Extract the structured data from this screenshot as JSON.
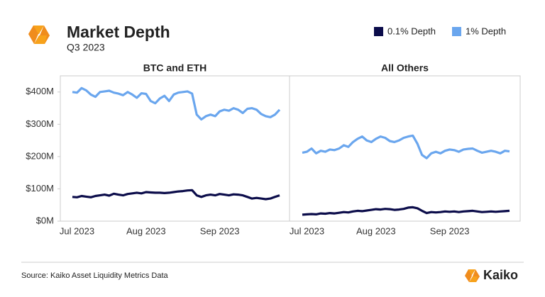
{
  "title": "Market Depth",
  "subtitle": "Q3 2023",
  "source": "Source: Kaiko Asset Liquidity Metrics Data",
  "brand": "Kaiko",
  "chart_data": [
    {
      "type": "line",
      "title": "BTC and ETH",
      "categories": [
        null,
        "Jul 2023",
        null,
        null,
        null,
        null,
        null,
        null,
        null,
        null,
        null,
        null,
        null,
        null,
        null,
        null,
        "Aug 2023",
        null,
        null,
        null,
        null,
        null,
        null,
        null,
        null,
        null,
        null,
        null,
        null,
        null,
        null,
        null,
        "Sep 2023",
        null,
        null,
        null,
        null,
        null,
        null,
        null,
        null,
        null,
        null,
        null,
        null,
        null
      ],
      "series": [
        {
          "name": "0.1% Depth",
          "color": "#0b0c4a",
          "values": [
            75,
            74,
            78,
            76,
            74,
            78,
            80,
            82,
            79,
            85,
            82,
            80,
            84,
            86,
            88,
            86,
            90,
            89,
            88,
            88,
            87,
            88,
            90,
            92,
            93,
            95,
            96,
            80,
            75,
            80,
            82,
            80,
            84,
            82,
            80,
            83,
            82,
            80,
            75,
            70,
            72,
            70,
            68,
            70,
            75,
            80
          ]
        },
        {
          "name": "1% Depth",
          "color": "#6aa6ee",
          "values": [
            400,
            398,
            412,
            405,
            392,
            385,
            400,
            402,
            404,
            398,
            395,
            390,
            400,
            392,
            382,
            396,
            394,
            372,
            365,
            380,
            388,
            372,
            392,
            398,
            400,
            402,
            395,
            330,
            315,
            325,
            330,
            325,
            340,
            345,
            342,
            350,
            345,
            335,
            348,
            350,
            345,
            332,
            325,
            322,
            330,
            345
          ]
        }
      ],
      "ylim": [
        0,
        450
      ],
      "yticks": [
        {
          "value": 0,
          "label": "$0M"
        },
        {
          "value": 100,
          "label": "$100M"
        },
        {
          "value": 200,
          "label": "$200M"
        },
        {
          "value": 300,
          "label": "$300M"
        },
        {
          "value": 400,
          "label": "$400M"
        }
      ],
      "legend": "top-right"
    },
    {
      "type": "line",
      "title": "All Others",
      "categories": [
        null,
        "Jul 2023",
        null,
        null,
        null,
        null,
        null,
        null,
        null,
        null,
        null,
        null,
        null,
        null,
        null,
        null,
        "Aug 2023",
        null,
        null,
        null,
        null,
        null,
        null,
        null,
        null,
        null,
        null,
        null,
        null,
        null,
        null,
        null,
        "Sep 2023",
        null,
        null,
        null,
        null,
        null,
        null,
        null,
        null,
        null,
        null,
        null,
        null,
        null
      ],
      "series": [
        {
          "name": "0.1% Depth",
          "color": "#0b0c4a",
          "values": [
            20,
            21,
            22,
            21,
            24,
            23,
            25,
            24,
            26,
            28,
            27,
            30,
            32,
            31,
            33,
            35,
            37,
            36,
            38,
            37,
            35,
            36,
            38,
            42,
            43,
            40,
            32,
            25,
            28,
            27,
            28,
            30,
            29,
            30,
            28,
            30,
            31,
            32,
            30,
            28,
            29,
            30,
            29,
            30,
            31,
            32
          ]
        },
        {
          "name": "1% Depth",
          "color": "#6aa6ee",
          "values": [
            212,
            215,
            225,
            210,
            218,
            215,
            222,
            220,
            225,
            235,
            230,
            245,
            255,
            262,
            250,
            245,
            255,
            262,
            258,
            248,
            245,
            250,
            258,
            262,
            265,
            240,
            205,
            195,
            210,
            215,
            210,
            218,
            222,
            220,
            215,
            222,
            224,
            225,
            218,
            212,
            215,
            218,
            215,
            210,
            218,
            216
          ]
        }
      ],
      "ylim": [
        0,
        450
      ]
    }
  ]
}
